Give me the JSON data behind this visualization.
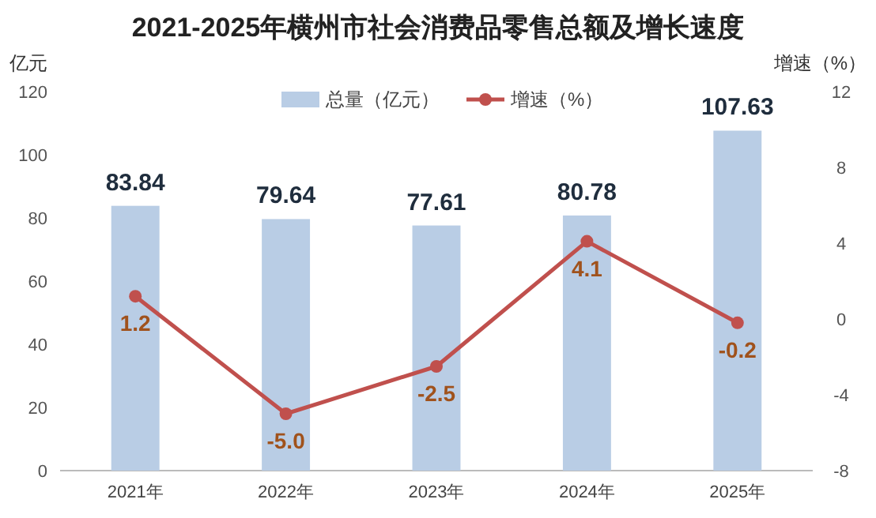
{
  "chart_data": {
    "type": "bar",
    "title": "2021-2025年横州市社会消费品零售总额及增长速度",
    "ylabel": "亿元",
    "y2label": "增速（%）",
    "categories": [
      "2021年",
      "2022年",
      "2023年",
      "2024年",
      "2025年"
    ],
    "series": [
      {
        "name": "总量（亿元）",
        "color": "#b9cde5",
        "values": [
          83.84,
          79.64,
          77.61,
          80.78,
          107.63
        ]
      },
      {
        "name": "增速（%）",
        "type": "line",
        "axis": "y2",
        "color": "#c0504d",
        "values": [
          1.2,
          -5.0,
          -2.5,
          4.1,
          -0.2
        ],
        "value_labels": [
          "1.2",
          "-5.0",
          "-2.5",
          "4.1",
          "-0.2"
        ]
      }
    ],
    "ylim": [
      0,
      120
    ],
    "yticks": [
      0,
      20,
      40,
      60,
      80,
      100,
      120
    ],
    "y2lim": [
      -8,
      12
    ],
    "y2ticks": [
      -8,
      -4,
      0,
      4,
      8,
      12
    ],
    "legend": "top",
    "marker": "circle",
    "data_labels": true
  }
}
